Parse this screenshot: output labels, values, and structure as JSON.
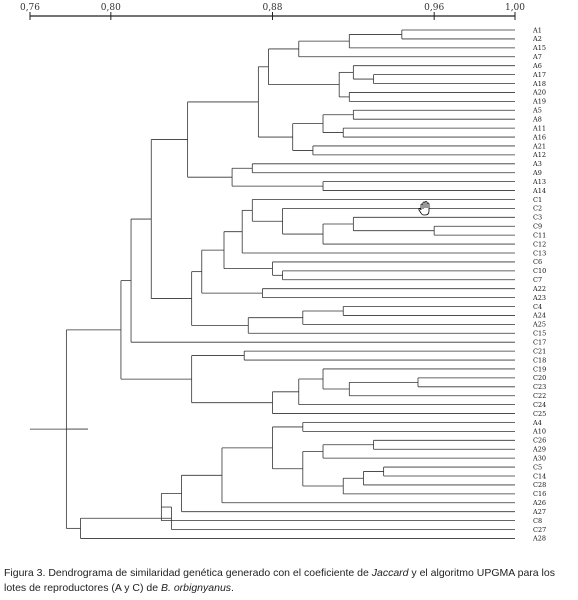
{
  "chart_data": {
    "type": "dendrogram",
    "axis": {
      "ticks": [
        "0,76",
        "0,80",
        "0,88",
        "0,96",
        "1,00"
      ],
      "tick_values": [
        0.76,
        0.8,
        0.88,
        0.96,
        1.0
      ],
      "range": [
        0.76,
        1.0
      ],
      "position": "top"
    },
    "leaves": [
      "A1",
      "A2",
      "A15",
      "A7",
      "A6",
      "A17",
      "A18",
      "A20",
      "A19",
      "A5",
      "A8",
      "A11",
      "A16",
      "A21",
      "A12",
      "A3",
      "A9",
      "A13",
      "A14",
      "C1",
      "C2",
      "C3",
      "C9",
      "C11",
      "C12",
      "C13",
      "C6",
      "C10",
      "C7",
      "A22",
      "A23",
      "C4",
      "A24",
      "A25",
      "C15",
      "C17",
      "C21",
      "C18",
      "C19",
      "C20",
      "C23",
      "C22",
      "C24",
      "C25",
      "A4",
      "A10",
      "C26",
      "A29",
      "A30",
      "C5",
      "C14",
      "C28",
      "C16",
      "A26",
      "A27",
      "C8",
      "C27",
      "A28"
    ],
    "merges": [
      {
        "a": "A1",
        "b": "A2",
        "sim": 0.944
      },
      {
        "a": "N0",
        "b": "A15",
        "sim": 0.918
      },
      {
        "a": "N1",
        "b": "A7",
        "sim": 0.893
      },
      {
        "a": "A17",
        "b": "A18",
        "sim": 0.93
      },
      {
        "a": "A6",
        "b": "N3",
        "sim": 0.92
      },
      {
        "a": "A20",
        "b": "A19",
        "sim": 0.918
      },
      {
        "a": "N4",
        "b": "N5",
        "sim": 0.913
      },
      {
        "a": "N2",
        "b": "N6",
        "sim": 0.878
      },
      {
        "a": "A5",
        "b": "A8",
        "sim": 0.92
      },
      {
        "a": "A11",
        "b": "A16",
        "sim": 0.915
      },
      {
        "a": "N8",
        "b": "N9",
        "sim": 0.905
      },
      {
        "a": "A21",
        "b": "A12",
        "sim": 0.9
      },
      {
        "a": "N10",
        "b": "N11",
        "sim": 0.89
      },
      {
        "a": "N7",
        "b": "N12",
        "sim": 0.873
      },
      {
        "a": "A3",
        "b": "A9",
        "sim": 0.87
      },
      {
        "a": "A13",
        "b": "A14",
        "sim": 0.905
      },
      {
        "a": "N14",
        "b": "N15",
        "sim": 0.86
      },
      {
        "a": "N13",
        "b": "N16",
        "sim": 0.838
      },
      {
        "a": "C9",
        "b": "C11",
        "sim": 0.96
      },
      {
        "a": "C3",
        "b": "N18",
        "sim": 0.92
      },
      {
        "a": "N19",
        "b": "C12",
        "sim": 0.905
      },
      {
        "a": "C2",
        "b": "N20",
        "sim": 0.885
      },
      {
        "a": "C1",
        "b": "N21",
        "sim": 0.87
      },
      {
        "a": "N22",
        "b": "C13",
        "sim": 0.865
      },
      {
        "a": "C10",
        "b": "C7",
        "sim": 0.885
      },
      {
        "a": "C6",
        "b": "N24",
        "sim": 0.88
      },
      {
        "a": "N23",
        "b": "N25",
        "sim": 0.856
      },
      {
        "a": "A22",
        "b": "A23",
        "sim": 0.875
      },
      {
        "a": "N26",
        "b": "N27",
        "sim": 0.845
      },
      {
        "a": "C4",
        "b": "A24",
        "sim": 0.915
      },
      {
        "a": "N29",
        "b": "A25",
        "sim": 0.895
      },
      {
        "a": "N30",
        "b": "C15",
        "sim": 0.868
      },
      {
        "a": "N28",
        "b": "N31",
        "sim": 0.84
      },
      {
        "a": "N17",
        "b": "N32",
        "sim": 0.82
      },
      {
        "a": "N33",
        "b": "C17",
        "sim": 0.81
      },
      {
        "a": "C21",
        "b": "C18",
        "sim": 0.866
      },
      {
        "a": "C20",
        "b": "C23",
        "sim": 0.952
      },
      {
        "a": "N36",
        "b": "C22",
        "sim": 0.918
      },
      {
        "a": "C19",
        "b": "N37",
        "sim": 0.905
      },
      {
        "a": "N38",
        "b": "C24",
        "sim": 0.893
      },
      {
        "a": "N39",
        "b": "C25",
        "sim": 0.88
      },
      {
        "a": "N35",
        "b": "N40",
        "sim": 0.84
      },
      {
        "a": "N34",
        "b": "N41",
        "sim": 0.805
      },
      {
        "a": "A4",
        "b": "A10",
        "sim": 0.895
      },
      {
        "a": "C26",
        "b": "A29",
        "sim": 0.93
      },
      {
        "a": "N44",
        "b": "A30",
        "sim": 0.905
      },
      {
        "a": "C5",
        "b": "C14",
        "sim": 0.935
      },
      {
        "a": "N46",
        "b": "C28",
        "sim": 0.925
      },
      {
        "a": "N47",
        "b": "C16",
        "sim": 0.915
      },
      {
        "a": "N45",
        "b": "N48",
        "sim": 0.895
      },
      {
        "a": "N43",
        "b": "N49",
        "sim": 0.88
      },
      {
        "a": "N50",
        "b": "A26",
        "sim": 0.855
      },
      {
        "a": "N51",
        "b": "A27",
        "sim": 0.835
      },
      {
        "a": "N52",
        "b": "C8",
        "sim": 0.825
      },
      {
        "a": "N53",
        "b": "C27",
        "sim": 0.83
      },
      {
        "a": "N54",
        "b": "A28",
        "sim": 0.785
      },
      {
        "a": "N42",
        "b": "N55",
        "sim": 0.778
      }
    ]
  },
  "caption": {
    "lead": "Figura 3. Dendrograma de similaridad genética generado con el coeficiente de ",
    "term": "Jaccard",
    "middle": " y el algoritmo UPGMA para los lotes de reproductores (A y C) de ",
    "species": "B. orbignyanus",
    "end": "."
  }
}
